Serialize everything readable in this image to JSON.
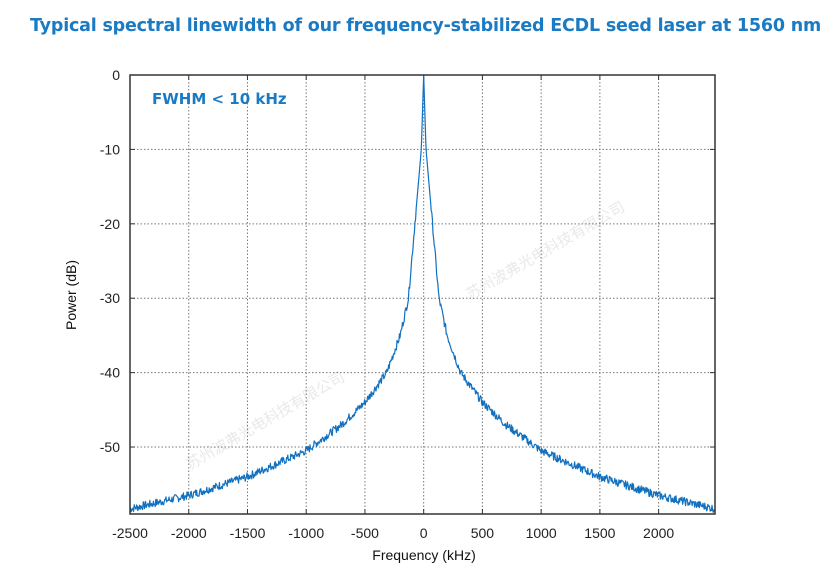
{
  "title": "Typical spectral linewidth of our frequency-stabilized ECDL seed laser at 1560 nm",
  "watermark": "苏州波弗光电科技有限公司",
  "chart_data": {
    "type": "line",
    "xlabel": "Frequency (kHz)",
    "ylabel": "Power (dB)",
    "xlim": [
      -2500,
      2480
    ],
    "ylim": [
      -59,
      0
    ],
    "xticks": [
      "-2500",
      "-2000",
      "-1500",
      "-1000",
      "-500",
      "0",
      "500",
      "1000",
      "1500",
      "2000"
    ],
    "xtick_values": [
      -2500,
      -2000,
      -1500,
      -1000,
      -500,
      0,
      500,
      1000,
      1500,
      2000
    ],
    "yticks": [
      "0",
      "-10",
      "-20",
      "-30",
      "-40",
      "-50"
    ],
    "ytick_values": [
      0,
      -10,
      -20,
      -30,
      -40,
      -50
    ],
    "grid": true,
    "annotation": "FWHM < 10 kHz",
    "line_color": "#1170bf",
    "series": [
      {
        "x": [
          -2500,
          -2000,
          -1500,
          -1000,
          -700,
          -500,
          -315,
          -200,
          -130,
          -75,
          -20,
          0,
          20,
          75,
          130,
          200,
          315,
          500,
          700,
          1000,
          1500,
          2000,
          2480
        ],
        "y": [
          -58.3,
          -56.5,
          -54,
          -50.5,
          -47,
          -44,
          -40,
          -35,
          -30,
          -20,
          -10,
          0,
          -10,
          -20,
          -30,
          -35,
          -40,
          -44,
          -47,
          -50.5,
          -54,
          -56.5,
          -58.3
        ]
      }
    ]
  }
}
